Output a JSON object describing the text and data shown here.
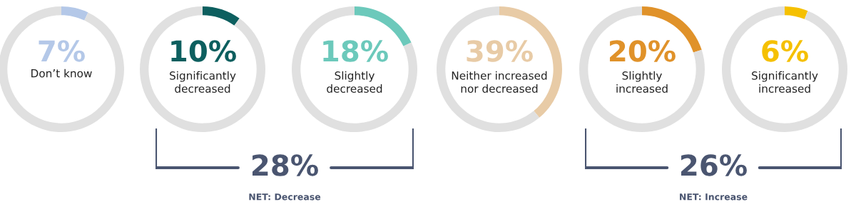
{
  "chart_data": [
    {
      "type": "donut",
      "categories": [
        "Don’t know",
        null
      ],
      "values": [
        7,
        93
      ],
      "colors": [
        "#b4c8e8",
        "#e0e0e0"
      ],
      "value_labels": [
        "7%",
        null
      ]
    },
    {
      "type": "donut",
      "categories": [
        "Significantly\ndecreased",
        null
      ],
      "values": [
        10,
        90
      ],
      "colors": [
        "#0d5f5f",
        "#e0e0e0"
      ],
      "value_labels": [
        "10%",
        null
      ]
    },
    {
      "type": "donut",
      "categories": [
        "Slightly\ndecreased",
        null
      ],
      "values": [
        18,
        82
      ],
      "colors": [
        "#6cc9bb",
        "#e0e0e0"
      ],
      "value_labels": [
        "18%",
        null
      ]
    },
    {
      "type": "donut",
      "categories": [
        "Neither increased\nnor decreased",
        null
      ],
      "values": [
        39,
        61
      ],
      "colors": [
        "#e8cba6",
        "#e0e0e0"
      ],
      "value_labels": [
        "39%",
        null
      ]
    },
    {
      "type": "donut",
      "categories": [
        "Slightly\nincreased",
        null
      ],
      "values": [
        20,
        80
      ],
      "colors": [
        "#e0922a",
        "#e0e0e0"
      ],
      "value_labels": [
        "20%",
        null
      ]
    },
    {
      "type": "donut",
      "categories": [
        "Significantly\nincreased",
        null
      ],
      "values": [
        6,
        94
      ],
      "colors": [
        "#f5c000",
        "#e0e0e0"
      ],
      "value_labels": [
        "6%",
        null
      ]
    },
    {
      "type": "other",
      "annotations": [
        "28%",
        "NET: Decrease"
      ]
    },
    {
      "type": "other",
      "annotations": [
        "26%",
        "NET: Increase"
      ]
    }
  ]
}
